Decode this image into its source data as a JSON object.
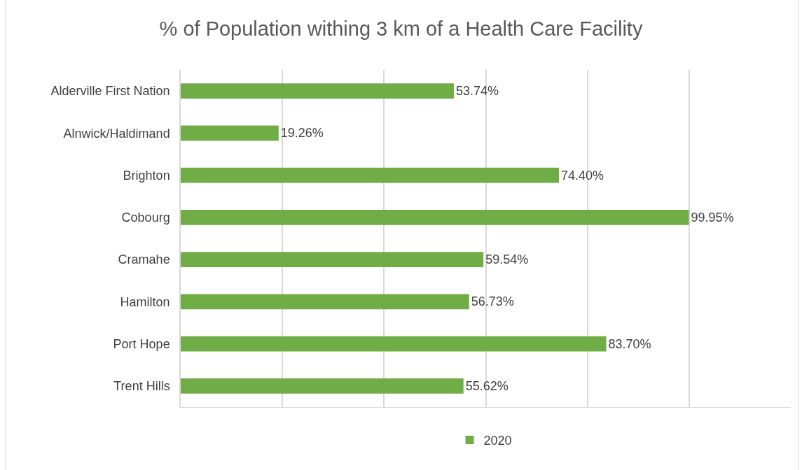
{
  "chart_data": {
    "type": "bar",
    "orientation": "horizontal",
    "title": "% of Population withing 3 km of a Health Care Facility",
    "categories": [
      "Alderville First Nation",
      "Alnwick/Haldimand",
      "Brighton",
      "Cobourg",
      "Cramahe",
      "Hamilton",
      "Port Hope",
      "Trent Hills"
    ],
    "series": [
      {
        "name": "2020",
        "color": "#70ad47",
        "values": [
          53.74,
          19.26,
          74.4,
          99.95,
          59.54,
          56.73,
          83.7,
          55.62
        ],
        "value_labels": [
          "53.74%",
          "19.26%",
          "74.40%",
          "99.95%",
          "59.54%",
          "56.73%",
          "83.70%",
          "55.62%"
        ]
      }
    ],
    "xlim": [
      0,
      120
    ],
    "xticks": [
      {
        "value": 0,
        "label": null
      },
      {
        "value": 20,
        "label": null
      },
      {
        "value": 40,
        "label": null
      },
      {
        "value": 60,
        "label": null
      },
      {
        "value": 80,
        "label": null
      },
      {
        "value": 100,
        "label": null
      }
    ],
    "grid": "x",
    "legend": "bottom",
    "tick_labels": "y"
  }
}
